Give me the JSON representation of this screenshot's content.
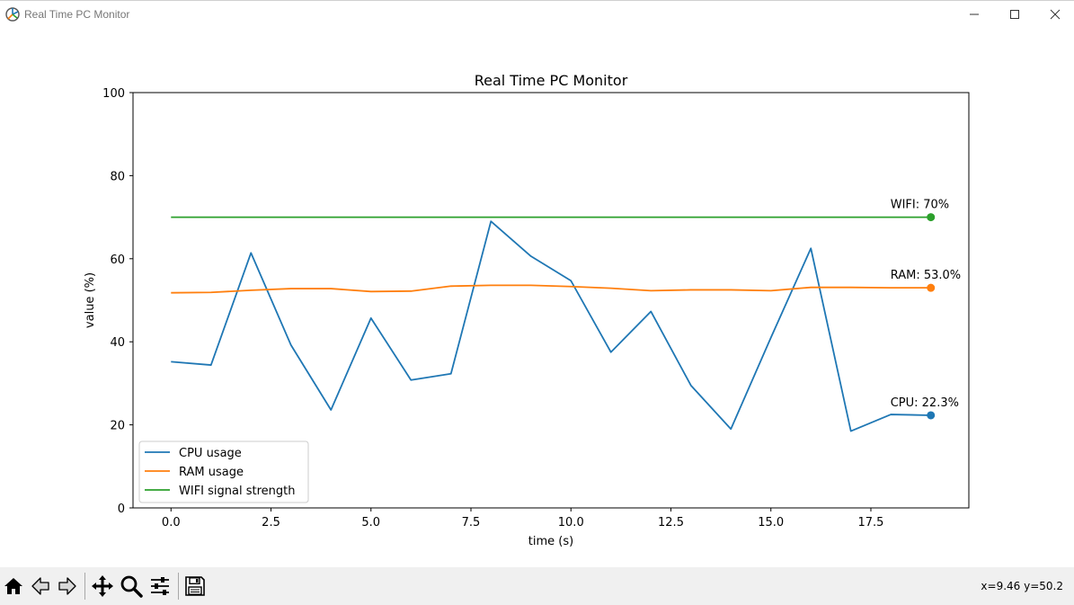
{
  "window": {
    "title": "Real Time PC Monitor",
    "controls": [
      "minimize",
      "maximize",
      "close"
    ]
  },
  "toolbar": {
    "buttons": [
      {
        "name": "home-icon"
      },
      {
        "name": "back-arrow-icon"
      },
      {
        "name": "forward-arrow-icon"
      },
      {
        "name": "pan-icon"
      },
      {
        "name": "zoom-icon"
      },
      {
        "name": "configure-subplots-icon"
      },
      {
        "name": "save-icon"
      }
    ],
    "coords": "x=9.46 y=50.2"
  },
  "chart_data": {
    "type": "line",
    "title": "Real Time PC Monitor",
    "xlabel": "time (s)",
    "ylabel": "value (%)",
    "xlim": [
      -0.95,
      19.95
    ],
    "ylim": [
      0,
      100
    ],
    "xticks": [
      0.0,
      2.5,
      5.0,
      7.5,
      10.0,
      12.5,
      15.0,
      17.5
    ],
    "xtick_labels": [
      "0.0",
      "2.5",
      "5.0",
      "7.5",
      "10.0",
      "12.5",
      "15.0",
      "17.5"
    ],
    "yticks": [
      0,
      20,
      40,
      60,
      80,
      100
    ],
    "ytick_labels": [
      "0",
      "20",
      "40",
      "60",
      "80",
      "100"
    ],
    "grid": false,
    "legend_position": "lower-left",
    "x": [
      0,
      1,
      2,
      3,
      4,
      5,
      6,
      7,
      8,
      9,
      10,
      11,
      12,
      13,
      14,
      15,
      16,
      17,
      18,
      19
    ],
    "series": [
      {
        "name": "CPU usage",
        "color": "#1f77b4",
        "values": [
          35.2,
          34.4,
          61.4,
          39.2,
          23.6,
          45.7,
          30.8,
          32.3,
          69.0,
          60.6,
          54.7,
          37.5,
          47.3,
          29.5,
          19.0,
          41.0,
          62.5,
          18.5,
          22.5,
          22.3
        ],
        "end_label": "CPU: 22.3%"
      },
      {
        "name": "RAM usage",
        "color": "#ff7f0e",
        "values": [
          51.8,
          51.9,
          52.4,
          52.8,
          52.8,
          52.1,
          52.2,
          53.4,
          53.6,
          53.6,
          53.3,
          52.9,
          52.3,
          52.5,
          52.5,
          52.3,
          53.1,
          53.1,
          53.0,
          53.0
        ],
        "end_label": "RAM: 53.0%"
      },
      {
        "name": "WIFI signal strength",
        "color": "#2ca02c",
        "values": [
          70,
          70,
          70,
          70,
          70,
          70,
          70,
          70,
          70,
          70,
          70,
          70,
          70,
          70,
          70,
          70,
          70,
          70,
          70,
          70
        ],
        "end_label": "WIFI: 70%"
      }
    ]
  }
}
